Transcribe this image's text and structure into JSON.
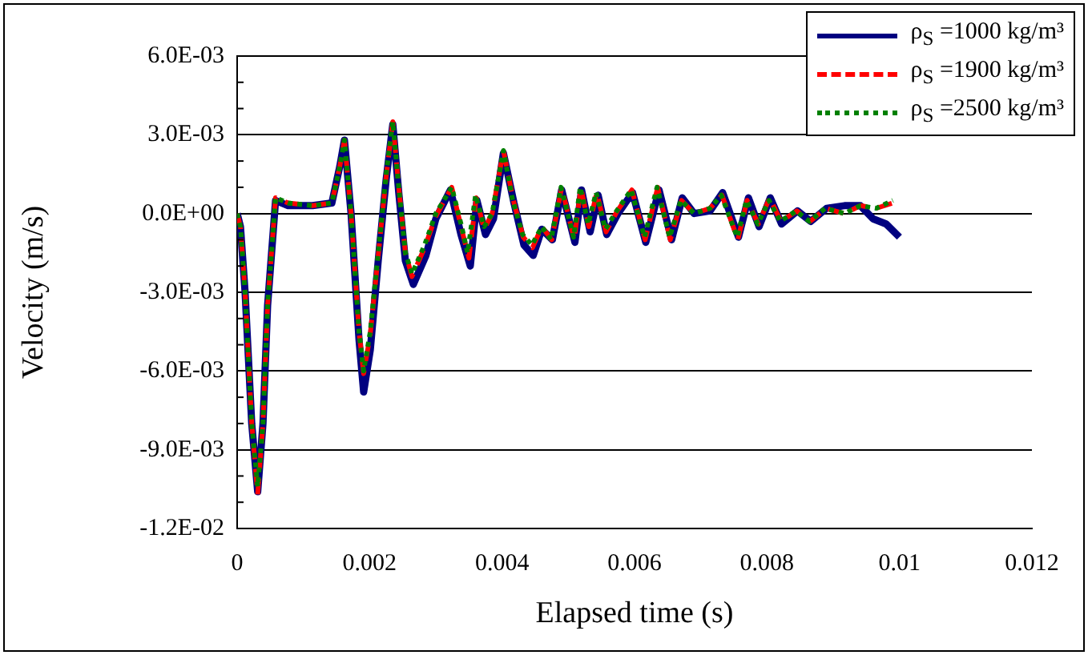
{
  "chart_data": {
    "type": "line",
    "xlabel": "Elapsed time (s)",
    "ylabel": "Velocity (m/s)",
    "xlim": [
      0,
      0.012
    ],
    "xticks": [
      0,
      0.002,
      0.004,
      0.006,
      0.008,
      0.01,
      0.012
    ],
    "ylim": [
      -0.012,
      0.006
    ],
    "yticks": [
      {
        "value": -0.012,
        "label": "-1.2E-02"
      },
      {
        "value": -0.009,
        "label": "-9.0E-03"
      },
      {
        "value": -0.006,
        "label": "-6.0E-03"
      },
      {
        "value": -0.003,
        "label": "-3.0E-03"
      },
      {
        "value": 0,
        "label": "0.0E+00"
      },
      {
        "value": 0.003,
        "label": "3.0E-03"
      },
      {
        "value": 0.006,
        "label": "6.0E-03"
      }
    ],
    "grid": "y",
    "legend": "top right",
    "marker": "none",
    "series": [
      {
        "name": "ρ$_{S}$ =1000 kg/m³",
        "color": "#000080",
        "line_style": "solid",
        "x": [
          0,
          5e-05,
          0.00012,
          0.00022,
          0.00031,
          0.00039,
          0.00046,
          0.00058,
          0.00077,
          0.00114,
          0.00143,
          0.00155,
          0.00162,
          0.00172,
          0.00184,
          0.00191,
          0.00201,
          0.00213,
          0.00225,
          0.00235,
          0.00244,
          0.00254,
          0.00266,
          0.00285,
          0.003,
          0.00322,
          0.00338,
          0.00352,
          0.00362,
          0.00375,
          0.00387,
          0.00402,
          0.00418,
          0.00433,
          0.00447,
          0.0046,
          0.00476,
          0.0049,
          0.0051,
          0.0052,
          0.00533,
          0.00545,
          0.00558,
          0.00575,
          0.00597,
          0.00617,
          0.00637,
          0.00656,
          0.00672,
          0.0069,
          0.00714,
          0.00733,
          0.00757,
          0.00772,
          0.00788,
          0.00805,
          0.00822,
          0.00846,
          0.00866,
          0.0089,
          0.00917,
          0.00941,
          0.0096,
          0.0098,
          0.01
        ],
        "values": [
          0,
          -0.0005,
          -0.003,
          -0.008,
          -0.0106,
          -0.008,
          -0.0035,
          0.0005,
          0.0003,
          0.0003,
          0.0004,
          0.0018,
          0.0028,
          0.0,
          -0.0048,
          -0.0068,
          -0.0052,
          -0.0018,
          0.0013,
          0.0034,
          0.0008,
          -0.0018,
          -0.0027,
          -0.0016,
          -0.0002,
          0.0009,
          -0.0008,
          -0.002,
          0.0005,
          -0.0008,
          -0.0002,
          0.0023,
          0.0004,
          -0.0012,
          -0.0016,
          -0.0006,
          -0.001,
          0.0009,
          -0.0011,
          0.0009,
          -0.0007,
          0.0007,
          -0.0008,
          0.0,
          0.0008,
          -0.0011,
          0.0009,
          -0.001,
          0.0006,
          0.0,
          0.0001,
          0.0008,
          -0.0009,
          0.0006,
          -0.0005,
          0.0006,
          -0.0004,
          0.0001,
          -0.0003,
          0.0002,
          0.0003,
          0.0003,
          -0.0002,
          -0.0004,
          -0.0009
        ]
      },
      {
        "name": "ρ$_{S}$ =1900 kg/m³",
        "color": "#ff0000",
        "line_style": "dashed",
        "x": [
          0,
          5e-05,
          0.00012,
          0.00022,
          0.00031,
          0.00039,
          0.00046,
          0.00058,
          0.00077,
          0.00114,
          0.00143,
          0.00155,
          0.00162,
          0.00172,
          0.00184,
          0.00191,
          0.00201,
          0.00213,
          0.00225,
          0.00235,
          0.00244,
          0.00254,
          0.00264,
          0.00283,
          0.003,
          0.00324,
          0.00339,
          0.0035,
          0.00361,
          0.00373,
          0.00385,
          0.00402,
          0.00417,
          0.00432,
          0.00446,
          0.0046,
          0.00475,
          0.0049,
          0.00509,
          0.00519,
          0.00531,
          0.00543,
          0.00557,
          0.00574,
          0.00596,
          0.00616,
          0.00635,
          0.00654,
          0.00671,
          0.0069,
          0.00714,
          0.00732,
          0.00756,
          0.0077,
          0.00787,
          0.00804,
          0.00821,
          0.00845,
          0.00865,
          0.00889,
          0.00917,
          0.00941,
          0.00965,
          0.0099
        ],
        "values": [
          0,
          -0.0005,
          -0.003,
          -0.008,
          -0.0107,
          -0.008,
          -0.0035,
          0.0006,
          0.0004,
          0.0003,
          0.0004,
          0.0018,
          0.0028,
          0.0,
          -0.0045,
          -0.0061,
          -0.0046,
          -0.0016,
          0.0014,
          0.0035,
          0.001,
          -0.0015,
          -0.0024,
          -0.0013,
          -0.0001,
          0.001,
          -0.0006,
          -0.0017,
          0.0006,
          -0.0006,
          0.0,
          0.0024,
          0.0005,
          -0.0009,
          -0.0013,
          -0.0005,
          -0.001,
          0.001,
          -0.001,
          0.001,
          -0.0005,
          0.0008,
          -0.0007,
          0.0001,
          0.0009,
          -0.001,
          0.001,
          -0.001,
          0.0005,
          0.0,
          0.0002,
          0.0007,
          -0.001,
          0.0005,
          -0.0004,
          0.0006,
          -0.0003,
          0.0001,
          -0.0003,
          0.0002,
          0.0,
          0.0003,
          0.0002,
          0.0004
        ]
      },
      {
        "name": "ρ$_{S}$ =2500 kg/m³",
        "color": "#008000",
        "line_style": "dotted",
        "x": [
          0,
          5e-05,
          0.00012,
          0.00022,
          0.00031,
          0.00039,
          0.00046,
          0.00058,
          0.00077,
          0.00114,
          0.00143,
          0.00155,
          0.00162,
          0.00172,
          0.00184,
          0.00191,
          0.00201,
          0.00213,
          0.00225,
          0.00235,
          0.00244,
          0.00254,
          0.00264,
          0.00283,
          0.003,
          0.00324,
          0.00339,
          0.00348,
          0.0036,
          0.00373,
          0.00385,
          0.00402,
          0.00416,
          0.00431,
          0.00445,
          0.0046,
          0.00474,
          0.00489,
          0.00508,
          0.00518,
          0.0053,
          0.00542,
          0.00556,
          0.00573,
          0.00595,
          0.00615,
          0.00634,
          0.00653,
          0.0067,
          0.0069,
          0.00714,
          0.00731,
          0.00755,
          0.00769,
          0.00786,
          0.00803,
          0.0082,
          0.00844,
          0.00864,
          0.00888,
          0.00917,
          0.00941,
          0.00965,
          0.0099
        ],
        "values": [
          0,
          -0.0005,
          -0.003,
          -0.008,
          -0.0104,
          -0.008,
          -0.0035,
          0.0006,
          0.0004,
          0.0003,
          0.0004,
          0.0018,
          0.0028,
          0.0,
          -0.0045,
          -0.006,
          -0.0045,
          -0.0015,
          0.0015,
          0.0035,
          0.001,
          -0.0015,
          -0.0023,
          -0.0012,
          0.0,
          0.001,
          -0.0005,
          -0.0015,
          0.0007,
          -0.0005,
          0.0,
          0.0024,
          0.0005,
          -0.0008,
          -0.0012,
          -0.0005,
          -0.001,
          0.001,
          -0.0009,
          0.001,
          -0.0004,
          0.0008,
          -0.0006,
          0.0001,
          0.0009,
          -0.0009,
          0.001,
          -0.0009,
          0.0005,
          0.0,
          0.0002,
          0.0007,
          -0.0009,
          0.0005,
          -0.0004,
          0.0005,
          -0.0003,
          0.0001,
          -0.0003,
          0.0002,
          0.0,
          0.0003,
          0.0002,
          0.0005
        ]
      }
    ]
  }
}
